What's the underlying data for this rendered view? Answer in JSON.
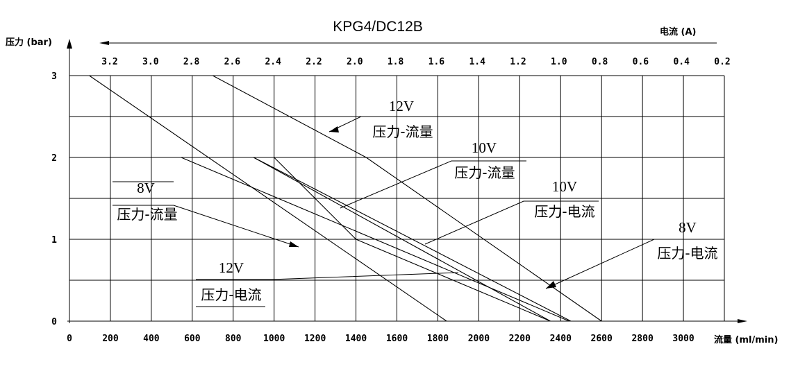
{
  "chart_data": {
    "type": "line",
    "title": "KPG4/DC12B",
    "xlabel": "流量 (ml/min)",
    "ylabel": "压力 (bar)",
    "x2label": "电流 (A)",
    "xlim": [
      0,
      3200
    ],
    "ylim": [
      0,
      3
    ],
    "x2lim": [
      3.3,
      0.2
    ],
    "x_ticks": [
      "0",
      "200",
      "400",
      "600",
      "800",
      "1000",
      "1200",
      "1400",
      "1600",
      "1800",
      "2000",
      "2200",
      "2400",
      "2600",
      "2800",
      "3000"
    ],
    "x_tick_values": [
      0,
      200,
      400,
      600,
      800,
      1000,
      1200,
      1400,
      1600,
      1800,
      2000,
      2200,
      2400,
      2600,
      2800,
      3000
    ],
    "y_ticks": [
      "0",
      "1",
      "2",
      "3"
    ],
    "y_tick_values": [
      0,
      1,
      2,
      3
    ],
    "x2_ticks": [
      "3.2",
      "3.0",
      "2.8",
      "2.6",
      "2.4",
      "2.2",
      "2.0",
      "1.8",
      "1.6",
      "1.4",
      "1.2",
      "1.0",
      "0.8",
      "0.6",
      "0.4",
      "0.2"
    ],
    "x2_tick_values": [
      3.2,
      3.0,
      2.8,
      2.6,
      2.4,
      2.2,
      2.0,
      1.8,
      1.6,
      1.4,
      1.2,
      1.0,
      0.8,
      0.6,
      0.4,
      0.2
    ],
    "grid": true,
    "series": [
      {
        "axis": "x2",
        "points": [
          [
            3.3,
            3
          ],
          [
            1.55,
            0
          ]
        ]
      },
      {
        "axis": "x2",
        "points": [
          [
            2.85,
            2
          ],
          [
            0.95,
            0
          ]
        ]
      },
      {
        "axis": "x",
        "points": [
          [
            700,
            3
          ],
          [
            1450,
            2
          ],
          [
            2600,
            0
          ]
        ]
      },
      {
        "axis": "x",
        "points": [
          [
            1000,
            2
          ],
          [
            1400,
            1
          ],
          [
            2350,
            0
          ]
        ]
      },
      {
        "axis": "x",
        "points": [
          [
            900,
            2
          ],
          [
            2450,
            0
          ]
        ]
      },
      {
        "axis": "x",
        "points": [
          [
            900,
            2
          ],
          [
            2350,
            0
          ]
        ]
      }
    ],
    "annotations": [
      {
        "voltage": "12V",
        "label": "压力-流量"
      },
      {
        "voltage": "10V",
        "label": "压力-流量"
      },
      {
        "voltage": "8V",
        "label": "压力-流量"
      },
      {
        "voltage": "10V",
        "label": "压力-电流"
      },
      {
        "voltage": "8V",
        "label": "压力-电流"
      },
      {
        "voltage": "12V",
        "label": "压力-电流"
      }
    ]
  }
}
